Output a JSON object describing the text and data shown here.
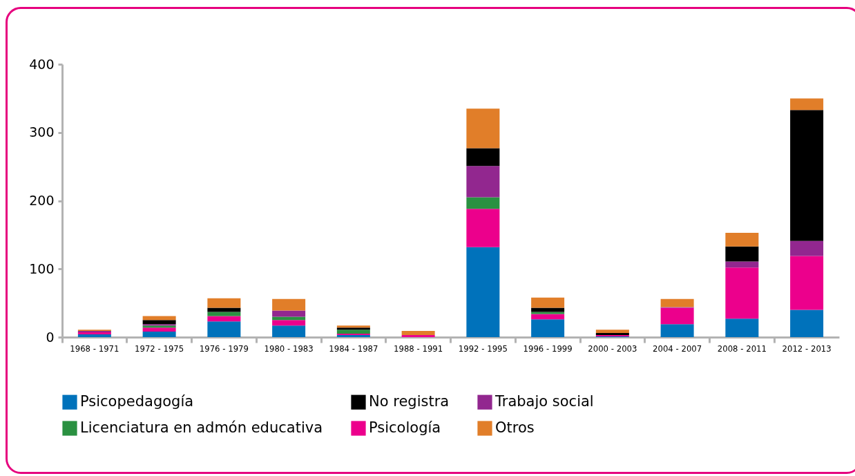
{
  "chart_data": {
    "type": "bar",
    "stacked": true,
    "categories": [
      "1968 - 1971",
      "1972 - 1975",
      "1976 - 1979",
      "1980 - 1983",
      "1984 - 1987",
      "1988 - 1991",
      "1992 - 1995",
      "1996 - 1999",
      "2000 - 2003",
      "2004 - 2007",
      "2008 - 2011",
      "2012 - 2013"
    ],
    "series": [
      {
        "name": "Psicopedagogía",
        "color": "#0072bb",
        "values": [
          4,
          8,
          23,
          17,
          3,
          0,
          132,
          26,
          1,
          19,
          27,
          40
        ]
      },
      {
        "name": "Psicología",
        "color": "#ec008c",
        "values": [
          3,
          6,
          8,
          8,
          2,
          3,
          56,
          8,
          2,
          24,
          75,
          79
        ]
      },
      {
        "name": "Licenciatura en admón educativa",
        "color": "#2a9141",
        "values": [
          0,
          3,
          6,
          5,
          6,
          0,
          17,
          3,
          0,
          0,
          0,
          0
        ]
      },
      {
        "name": "Trabajo social",
        "color": "#92278f",
        "values": [
          2,
          2,
          0,
          9,
          0,
          0,
          46,
          0,
          0,
          1,
          9,
          22
        ]
      },
      {
        "name": "No registra",
        "color": "#000000",
        "values": [
          0,
          6,
          6,
          0,
          3,
          0,
          26,
          6,
          3,
          0,
          22,
          192
        ]
      },
      {
        "name": "Otros",
        "color": "#e17e29",
        "values": [
          2,
          6,
          14,
          17,
          3,
          6,
          58,
          15,
          5,
          12,
          20,
          17
        ]
      }
    ],
    "ylim": [
      0,
      400
    ],
    "yticks": [
      0,
      100,
      200,
      300,
      400
    ],
    "grid": false,
    "legend": "bottom"
  }
}
